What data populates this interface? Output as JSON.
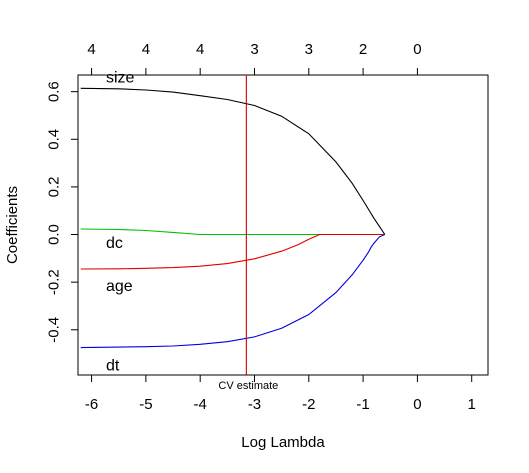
{
  "chart_data": {
    "type": "line",
    "title": "",
    "xlabel": "Log Lambda",
    "ylabel": "Coefficients",
    "xlim": [
      -6.25,
      1.3
    ],
    "ylim": [
      -0.59,
      0.67
    ],
    "x_ticks": [
      "-6",
      "-5",
      "-4",
      "-3",
      "-2",
      "-1",
      "0",
      "1"
    ],
    "x_tick_values": [
      -6,
      -5,
      -4,
      -3,
      -2,
      -1,
      0,
      1
    ],
    "y_ticks": [
      "-0.4",
      "-0.2",
      "0.0",
      "0.2",
      "0.4",
      "0.6"
    ],
    "y_tick_values": [
      -0.4,
      -0.2,
      0.0,
      0.2,
      0.4,
      0.6
    ],
    "top_axis_ticks": [
      "4",
      "4",
      "4",
      "3",
      "3",
      "2",
      "0"
    ],
    "top_axis_values": [
      -6,
      -5,
      -4,
      -3,
      -2,
      -1,
      0
    ],
    "grid": false,
    "legend": "none",
    "series": [
      {
        "name": "size",
        "color": "#000000",
        "x": [
          -6.2,
          -5.5,
          -5.0,
          -4.5,
          -4.0,
          -3.5,
          -3.0,
          -2.5,
          -2.0,
          -1.5,
          -1.2,
          -1.0,
          -0.8,
          -0.6
        ],
        "values": [
          0.614,
          0.612,
          0.607,
          0.598,
          0.583,
          0.567,
          0.542,
          0.497,
          0.423,
          0.305,
          0.215,
          0.143,
          0.068,
          0.0
        ]
      },
      {
        "name": "dc",
        "color": "#00c000",
        "x": [
          -6.2,
          -5.5,
          -5.0,
          -4.5,
          -4.0,
          -3.5,
          -3.0,
          -2.5,
          -2.0,
          -1.5,
          -1.0,
          -0.6
        ],
        "values": [
          0.023,
          0.021,
          0.017,
          0.009,
          0.0,
          0.0,
          0.0,
          0.0,
          0.0,
          0.0,
          0.0,
          0.0
        ]
      },
      {
        "name": "age",
        "color": "#e00000",
        "x": [
          -6.2,
          -5.5,
          -5.0,
          -4.5,
          -4.0,
          -3.5,
          -3.0,
          -2.5,
          -2.2,
          -2.0,
          -1.8,
          -1.5,
          -1.0,
          -0.6
        ],
        "values": [
          -0.145,
          -0.144,
          -0.142,
          -0.139,
          -0.133,
          -0.122,
          -0.102,
          -0.07,
          -0.043,
          -0.02,
          0.0,
          0.0,
          0.0,
          0.0
        ]
      },
      {
        "name": "dt",
        "color": "#0000e0",
        "x": [
          -6.2,
          -5.5,
          -5.0,
          -4.5,
          -4.0,
          -3.5,
          -3.0,
          -2.5,
          -2.0,
          -1.5,
          -1.2,
          -1.0,
          -0.9,
          -0.85,
          -0.8,
          -0.7,
          -0.6
        ],
        "values": [
          -0.475,
          -0.473,
          -0.471,
          -0.468,
          -0.461,
          -0.45,
          -0.43,
          -0.394,
          -0.336,
          -0.244,
          -0.169,
          -0.108,
          -0.074,
          -0.053,
          -0.036,
          -0.01,
          0.0
        ]
      }
    ],
    "vlines": [
      {
        "x": -3.15,
        "color": "#cc0000",
        "label": "CV estimate"
      }
    ]
  }
}
